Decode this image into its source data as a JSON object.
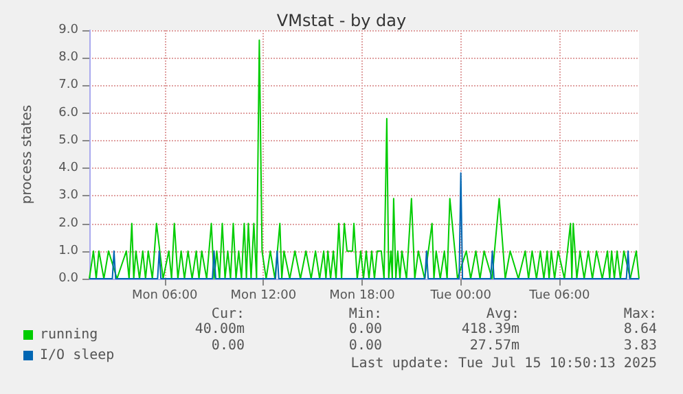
{
  "chart_data": {
    "type": "line",
    "title": "VMstat - by day",
    "ylabel": "process states",
    "xlim": [
      "2025-07-14T01:25",
      "2025-07-15T10:50"
    ],
    "xticks": [
      {
        "value": "2025-07-14T06:00",
        "label": "Mon 06:00"
      },
      {
        "value": "2025-07-14T12:00",
        "label": "Mon 12:00"
      },
      {
        "value": "2025-07-14T18:00",
        "label": "Mon 18:00"
      },
      {
        "value": "2025-07-15T00:00",
        "label": "Tue 00:00"
      },
      {
        "value": "2025-07-15T06:00",
        "label": "Tue 06:00"
      }
    ],
    "ylim": [
      0,
      9
    ],
    "yticks": [
      {
        "value": 0,
        "label": "0.0"
      },
      {
        "value": 1,
        "label": "1.0"
      },
      {
        "value": 2,
        "label": "2.0"
      },
      {
        "value": 3,
        "label": "3.0"
      },
      {
        "value": 4,
        "label": "4.0"
      },
      {
        "value": 5,
        "label": "5.0"
      },
      {
        "value": 6,
        "label": "6.0"
      },
      {
        "value": 7,
        "label": "7.0"
      },
      {
        "value": 8,
        "label": "8.0"
      },
      {
        "value": 9,
        "label": "9.0"
      }
    ],
    "grid": true,
    "legend": "bottom left",
    "marker": "none",
    "line_style": "solid",
    "series": [
      {
        "name": "running",
        "color": "#00cc00",
        "x": [
          "2025-07-14T01:25",
          "2025-07-14T01:40",
          "2025-07-14T01:50",
          "2025-07-14T02:00",
          "2025-07-14T02:18",
          "2025-07-14T02:35",
          "2025-07-14T03:06",
          "2025-07-14T03:40",
          "2025-07-14T03:50",
          "2025-07-14T04:00",
          "2025-07-14T04:07",
          "2025-07-14T04:15",
          "2025-07-14T04:28",
          "2025-07-14T04:40",
          "2025-07-14T04:50",
          "2025-07-14T05:00",
          "2025-07-14T05:15",
          "2025-07-14T05:30",
          "2025-07-14T05:54",
          "2025-07-14T06:15",
          "2025-07-14T06:25",
          "2025-07-14T06:35",
          "2025-07-14T06:48",
          "2025-07-14T07:00",
          "2025-07-14T07:12",
          "2025-07-14T07:25",
          "2025-07-14T07:40",
          "2025-07-14T07:55",
          "2025-07-14T08:05",
          "2025-07-14T08:15",
          "2025-07-14T08:33",
          "2025-07-14T08:50",
          "2025-07-14T09:00",
          "2025-07-14T09:10",
          "2025-07-14T09:20",
          "2025-07-14T09:30",
          "2025-07-14T09:40",
          "2025-07-14T09:50",
          "2025-07-14T10:00",
          "2025-07-14T10:10",
          "2025-07-14T10:20",
          "2025-07-14T10:30",
          "2025-07-14T10:40",
          "2025-07-14T10:50",
          "2025-07-14T10:58",
          "2025-07-14T11:05",
          "2025-07-14T11:15",
          "2025-07-14T11:25",
          "2025-07-14T11:35",
          "2025-07-14T11:45",
          "2025-07-14T11:55",
          "2025-07-14T12:10",
          "2025-07-14T12:25",
          "2025-07-14T12:42",
          "2025-07-14T13:00",
          "2025-07-14T13:07",
          "2025-07-14T13:15",
          "2025-07-14T13:36",
          "2025-07-14T13:55",
          "2025-07-14T14:15",
          "2025-07-14T14:35",
          "2025-07-14T14:54",
          "2025-07-14T15:10",
          "2025-07-14T15:25",
          "2025-07-14T15:40",
          "2025-07-14T15:48",
          "2025-07-14T15:55",
          "2025-07-14T16:05",
          "2025-07-14T16:15",
          "2025-07-14T16:25",
          "2025-07-14T16:35",
          "2025-07-14T16:45",
          "2025-07-14T16:55",
          "2025-07-14T17:05",
          "2025-07-14T17:25",
          "2025-07-14T17:30",
          "2025-07-14T17:42",
          "2025-07-14T17:55",
          "2025-07-14T18:05",
          "2025-07-14T18:15",
          "2025-07-14T18:25",
          "2025-07-14T18:35",
          "2025-07-14T18:45",
          "2025-07-14T18:55",
          "2025-07-14T19:10",
          "2025-07-14T19:20",
          "2025-07-14T19:30",
          "2025-07-14T19:37",
          "2025-07-14T19:45",
          "2025-07-14T19:50",
          "2025-07-14T19:55",
          "2025-07-14T20:03",
          "2025-07-14T20:10",
          "2025-07-14T20:18",
          "2025-07-14T20:25",
          "2025-07-14T20:42",
          "2025-07-14T21:00",
          "2025-07-14T21:12",
          "2025-07-14T21:25",
          "2025-07-14T21:48",
          "2025-07-14T22:15",
          "2025-07-14T22:22",
          "2025-07-14T22:30",
          "2025-07-14T22:45",
          "2025-07-14T23:00",
          "2025-07-14T23:10",
          "2025-07-14T23:20",
          "2025-07-14T23:48",
          "2025-07-15T00:20",
          "2025-07-15T00:36",
          "2025-07-15T00:55",
          "2025-07-15T01:10",
          "2025-07-15T01:25",
          "2025-07-15T01:54",
          "2025-07-15T02:20",
          "2025-07-15T02:42",
          "2025-07-15T03:00",
          "2025-07-15T03:30",
          "2025-07-15T03:55",
          "2025-07-15T04:07",
          "2025-07-15T04:20",
          "2025-07-15T04:36",
          "2025-07-15T04:50",
          "2025-07-15T05:03",
          "2025-07-15T05:15",
          "2025-07-15T05:22",
          "2025-07-15T05:30",
          "2025-07-15T05:42",
          "2025-07-15T05:55",
          "2025-07-15T06:18",
          "2025-07-15T06:40",
          "2025-07-15T06:45",
          "2025-07-15T06:50",
          "2025-07-15T07:03",
          "2025-07-15T07:15",
          "2025-07-15T07:30",
          "2025-07-15T07:45",
          "2025-07-15T08:00",
          "2025-07-15T08:15",
          "2025-07-15T08:36",
          "2025-07-15T08:55",
          "2025-07-15T09:03",
          "2025-07-15T09:10",
          "2025-07-15T09:20",
          "2025-07-15T09:30",
          "2025-07-15T09:42",
          "2025-07-15T09:55",
          "2025-07-15T10:18",
          "2025-07-15T10:40",
          "2025-07-15T10:50"
        ],
        "values": [
          0,
          1,
          0,
          1,
          0,
          1,
          0,
          1,
          0,
          2,
          0,
          1,
          0,
          1,
          0,
          1,
          0,
          2,
          0,
          1,
          0,
          2,
          0,
          1,
          0,
          1,
          0,
          1,
          0,
          1,
          0,
          2,
          0,
          1,
          0,
          2,
          0,
          1,
          0,
          2,
          0,
          1,
          0,
          2,
          0,
          2,
          0,
          2,
          0,
          8.64,
          1,
          0,
          1,
          0,
          2,
          0,
          1,
          0,
          1,
          0,
          1,
          0,
          1,
          0,
          1,
          0,
          1,
          0,
          1,
          0,
          2,
          0,
          2,
          1,
          1,
          2,
          0,
          1,
          0,
          1,
          0,
          1,
          0,
          1,
          1,
          0,
          5.8,
          0,
          1,
          0,
          2.9,
          0,
          1,
          0,
          1,
          0,
          2.9,
          0,
          1,
          0,
          2,
          0,
          1,
          0,
          1,
          0,
          2.9,
          0,
          1,
          0,
          1,
          0,
          1,
          0,
          2.9,
          0,
          1,
          0,
          1,
          0,
          1,
          0,
          1,
          0,
          1,
          0,
          1,
          0,
          1,
          0,
          2,
          0,
          2,
          0,
          1,
          0,
          1,
          0,
          1,
          0,
          1,
          0,
          1,
          0,
          1,
          0,
          1,
          0,
          1,
          0
        ]
      },
      {
        "name": "I/O sleep",
        "color": "#0066b3",
        "x": [
          "2025-07-14T01:25",
          "2025-07-14T02:49",
          "2025-07-14T02:55",
          "2025-07-14T03:01",
          "2025-07-14T05:34",
          "2025-07-14T05:40",
          "2025-07-14T05:46",
          "2025-07-14T08:54",
          "2025-07-14T09:00",
          "2025-07-14T09:06",
          "2025-07-14T12:44",
          "2025-07-14T12:50",
          "2025-07-14T12:56",
          "2025-07-14T21:49",
          "2025-07-14T21:55",
          "2025-07-14T22:01",
          "2025-07-14T23:54",
          "2025-07-15T00:00",
          "2025-07-15T00:06",
          "2025-07-15T01:49",
          "2025-07-15T01:55",
          "2025-07-15T02:01",
          "2025-07-15T10:04",
          "2025-07-15T10:10",
          "2025-07-15T10:16",
          "2025-07-15T10:50"
        ],
        "values": [
          0,
          0,
          1,
          0,
          0,
          1,
          0,
          0,
          1,
          0,
          0,
          1,
          0,
          0,
          1,
          0,
          0,
          3.83,
          0,
          0,
          1,
          0,
          0,
          1,
          0,
          0
        ]
      }
    ],
    "annotations": [
      "Cur:",
      "Min:",
      "Avg:",
      "Max:",
      "40.00m",
      "0.00",
      "418.39m",
      "8.64",
      "0.00",
      "0.00",
      "27.57m",
      "3.83",
      "Last update: Tue Jul 15 10:50:13 2025"
    ]
  }
}
